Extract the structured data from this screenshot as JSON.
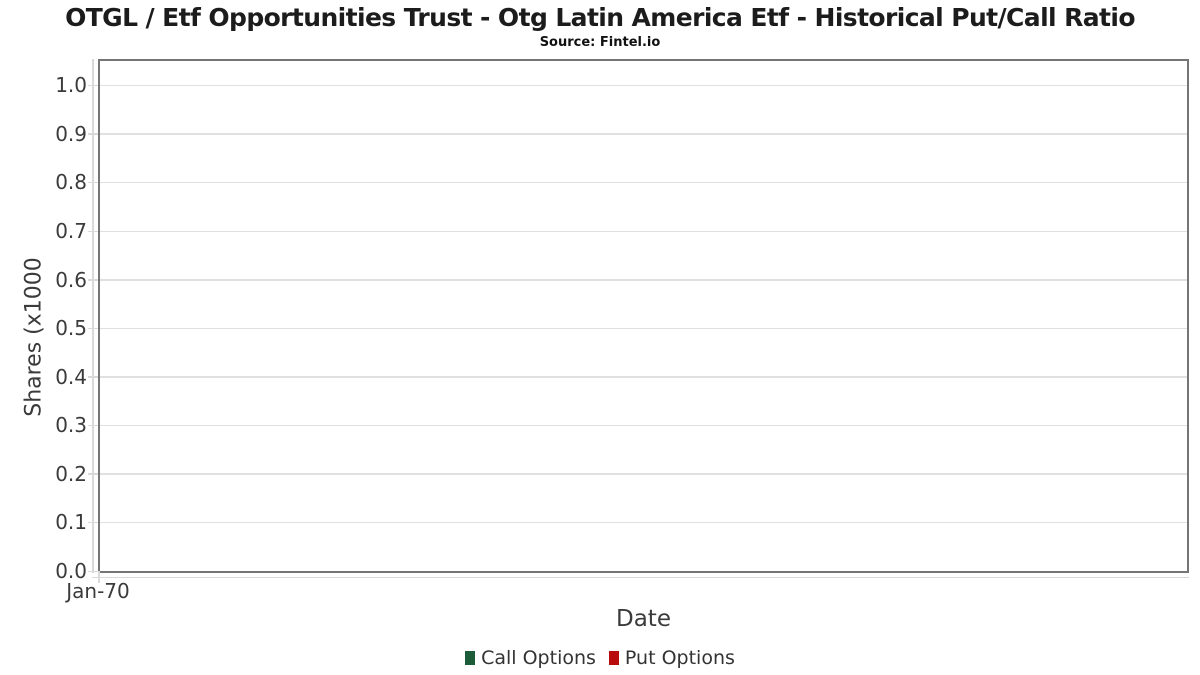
{
  "chart_data": {
    "type": "bar",
    "title": "OTGL / Etf Opportunities Trust - Otg Latin America Etf - Historical Put/Call Ratio",
    "subtitle": "Source: Fintel.io",
    "xlabel": "Date",
    "ylabel": "Shares (x1000",
    "categories": [
      "Jan-70"
    ],
    "series": [
      {
        "name": "Call Options",
        "color": "#1d5c38",
        "values": []
      },
      {
        "name": "Put Options",
        "color": "#b90d0d",
        "values": []
      }
    ],
    "yticks": [
      0.0,
      0.1,
      0.2,
      0.3,
      0.4,
      0.5,
      0.6,
      0.7,
      0.8,
      0.9,
      1.0
    ],
    "ylim": [
      0,
      1.05
    ],
    "grid": "horizontal",
    "legend_position": "bottom",
    "axis_style": {
      "border_color": "#757575",
      "grid_color": "#e0e0e0",
      "tick_color": "#d9d9d9",
      "tick_label_color": "#3b3b3b",
      "axis_title_color": "#3b3b3b",
      "title_color": "#1c1c1c",
      "legend_text_color": "#333333"
    }
  }
}
